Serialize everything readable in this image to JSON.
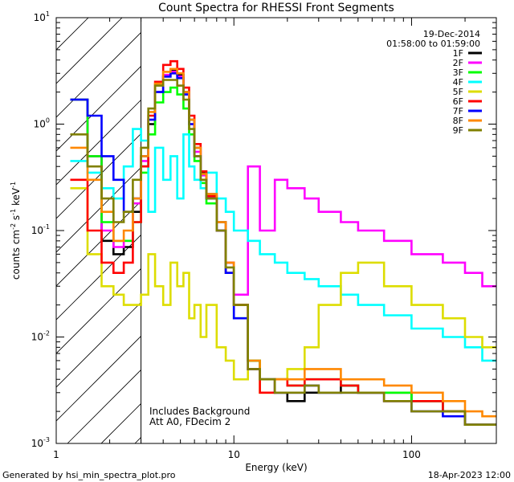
{
  "chart_data": {
    "type": "line",
    "title": "Count Spectra for RHESSI Front Segments",
    "xlabel": "Energy (keV)",
    "ylabel_parts": {
      "base": "counts cm",
      "sup1": "-2",
      "s": " s",
      "sup2": "-1",
      "kev": " keV",
      "sup3": "-1"
    },
    "x_scale": "log",
    "y_scale": "log",
    "xlim": [
      1,
      300
    ],
    "ylim": [
      0.001,
      10
    ],
    "x_ticks": [
      {
        "v": 1,
        "label": "1"
      },
      {
        "v": 10,
        "label": "10"
      },
      {
        "v": 100,
        "label": "100"
      }
    ],
    "y_ticks": [
      {
        "v": 0.001,
        "base": "10",
        "exp": "-3"
      },
      {
        "v": 0.01,
        "base": "10",
        "exp": "-2"
      },
      {
        "v": 0.1,
        "base": "10",
        "exp": "-1"
      },
      {
        "v": 1,
        "base": "10",
        "exp": "0"
      },
      {
        "v": 10,
        "base": "10",
        "exp": "1"
      }
    ],
    "excluded_region": [
      1.2,
      3
    ],
    "date": "19-Dec-2014",
    "time_range": "01:58:00 to 01:59:00",
    "annotations": [
      "Includes Background",
      "Att A0, FDecim 2"
    ],
    "footer_left": "Generated by hsi_min_spectra_plot.pro",
    "footer_right": "18-Apr-2023 12:00",
    "legend_position": "top-right",
    "energy_edges": [
      1.2,
      1.5,
      1.8,
      2.1,
      2.4,
      2.7,
      3.0,
      3.3,
      3.6,
      4.0,
      4.4,
      4.8,
      5.2,
      5.6,
      6.0,
      6.5,
      7.0,
      8.0,
      9.0,
      10.0,
      12.0,
      14.0,
      17.0,
      20.0,
      25.0,
      30.0,
      40.0,
      50.0,
      70.0,
      100.0,
      150.0,
      200.0,
      250.0,
      300.0
    ],
    "series": [
      {
        "name": "1F",
        "color": "#000000",
        "values": [
          1.7,
          0.5,
          0.08,
          0.06,
          0.07,
          0.15,
          0.4,
          1.0,
          2.0,
          2.8,
          3.2,
          2.9,
          2.0,
          1.1,
          0.6,
          0.35,
          0.22,
          0.12,
          0.05,
          0.02,
          0.006,
          0.004,
          0.003,
          0.0025,
          0.003,
          0.003,
          0.0035,
          0.003,
          0.003,
          0.0025,
          0.002,
          0.0015,
          0.0015
        ]
      },
      {
        "name": "2F",
        "color": "#ff00ff",
        "values": [
          1.7,
          0.5,
          0.1,
          0.07,
          0.08,
          0.18,
          0.45,
          1.1,
          2.0,
          2.9,
          3.1,
          2.8,
          1.9,
          1.0,
          0.55,
          0.33,
          0.2,
          0.1,
          0.05,
          0.025,
          0.4,
          0.1,
          0.3,
          0.25,
          0.2,
          0.15,
          0.12,
          0.1,
          0.08,
          0.06,
          0.05,
          0.04,
          0.03
        ]
      },
      {
        "name": "3F",
        "color": "#00ff00",
        "values": [
          1.7,
          0.5,
          0.12,
          0.08,
          0.08,
          0.12,
          0.35,
          0.8,
          1.6,
          2.0,
          2.2,
          1.9,
          1.4,
          0.8,
          0.45,
          0.28,
          0.18,
          0.1,
          0.04,
          0.015,
          0.006,
          0.004,
          0.004,
          0.0035,
          0.004,
          0.004,
          0.0035,
          0.003,
          0.003,
          0.0025,
          0.002,
          0.0015,
          0.0015
        ]
      },
      {
        "name": "4F",
        "color": "#00ffff",
        "values": [
          0.45,
          0.35,
          0.25,
          0.2,
          0.4,
          0.9,
          0.7,
          0.15,
          0.6,
          0.3,
          0.5,
          0.2,
          0.8,
          0.4,
          0.3,
          0.25,
          0.35,
          0.2,
          0.15,
          0.1,
          0.08,
          0.06,
          0.05,
          0.04,
          0.035,
          0.03,
          0.025,
          0.02,
          0.016,
          0.012,
          0.01,
          0.008,
          0.006
        ]
      },
      {
        "name": "5F",
        "color": "#dddd00",
        "values": [
          0.25,
          0.06,
          0.03,
          0.025,
          0.02,
          0.02,
          0.025,
          0.06,
          0.03,
          0.02,
          0.05,
          0.03,
          0.04,
          0.015,
          0.02,
          0.01,
          0.02,
          0.008,
          0.006,
          0.004,
          0.005,
          0.003,
          0.004,
          0.005,
          0.008,
          0.02,
          0.04,
          0.05,
          0.03,
          0.02,
          0.015,
          0.01,
          0.008
        ]
      },
      {
        "name": "6F",
        "color": "#ff0000",
        "values": [
          0.3,
          0.1,
          0.05,
          0.04,
          0.05,
          0.12,
          0.4,
          1.2,
          2.5,
          3.6,
          3.9,
          3.3,
          2.2,
          1.2,
          0.65,
          0.36,
          0.21,
          0.1,
          0.04,
          0.02,
          0.005,
          0.003,
          0.004,
          0.0035,
          0.004,
          0.004,
          0.0035,
          0.003,
          0.0025,
          0.0025,
          0.002,
          0.0015,
          0.0015
        ]
      },
      {
        "name": "7F",
        "color": "#0000ff",
        "values": [
          1.7,
          1.2,
          0.5,
          0.3,
          0.15,
          0.2,
          0.5,
          1.1,
          2.0,
          2.8,
          3.0,
          2.7,
          1.9,
          1.0,
          0.5,
          0.3,
          0.2,
          0.1,
          0.04,
          0.015,
          0.005,
          0.004,
          0.003,
          0.003,
          0.0035,
          0.003,
          0.003,
          0.003,
          0.0025,
          0.002,
          0.0018,
          0.0015,
          0.0015
        ]
      },
      {
        "name": "8F",
        "color": "#ff8800",
        "values": [
          0.6,
          0.3,
          0.15,
          0.08,
          0.1,
          0.2,
          0.5,
          1.3,
          2.4,
          3.1,
          3.3,
          3.0,
          2.0,
          1.1,
          0.6,
          0.34,
          0.22,
          0.12,
          0.05,
          0.02,
          0.006,
          0.004,
          0.004,
          0.004,
          0.005,
          0.005,
          0.004,
          0.004,
          0.0035,
          0.003,
          0.0025,
          0.002,
          0.0018
        ]
      },
      {
        "name": "9F",
        "color": "#808000",
        "values": [
          0.8,
          0.4,
          0.2,
          0.12,
          0.15,
          0.3,
          0.6,
          1.4,
          2.3,
          2.6,
          2.6,
          2.3,
          1.7,
          0.9,
          0.5,
          0.3,
          0.2,
          0.1,
          0.045,
          0.02,
          0.005,
          0.004,
          0.003,
          0.003,
          0.0035,
          0.003,
          0.003,
          0.003,
          0.0025,
          0.002,
          0.002,
          0.0015,
          0.0015
        ]
      }
    ]
  }
}
